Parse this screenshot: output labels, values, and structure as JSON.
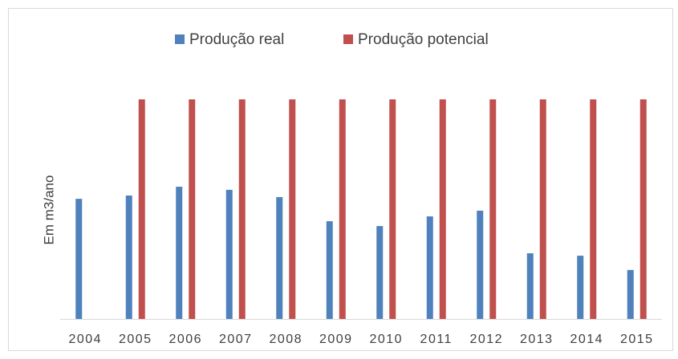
{
  "chart_data": {
    "type": "bar",
    "y_label": "Em m3/ano",
    "categories": [
      "2004",
      "2005",
      "2006",
      "2007",
      "2008",
      "2009",
      "2010",
      "2011",
      "2012",
      "2013",
      "2014",
      "2015"
    ],
    "series": [
      {
        "name": "Produção real",
        "color": "#4f81bd",
        "values": [
          54.7,
          56.2,
          60.2,
          58.8,
          55.5,
          44.5,
          42.3,
          46.7,
          49.3,
          29.9,
          28.8,
          22.3
        ]
      },
      {
        "name": "Produção potencial",
        "color": "#c0504d",
        "values": [
          null,
          100,
          100,
          100,
          100,
          100,
          100,
          100,
          100,
          100,
          100,
          100
        ]
      }
    ],
    "ylim": [
      0,
      100
    ]
  }
}
